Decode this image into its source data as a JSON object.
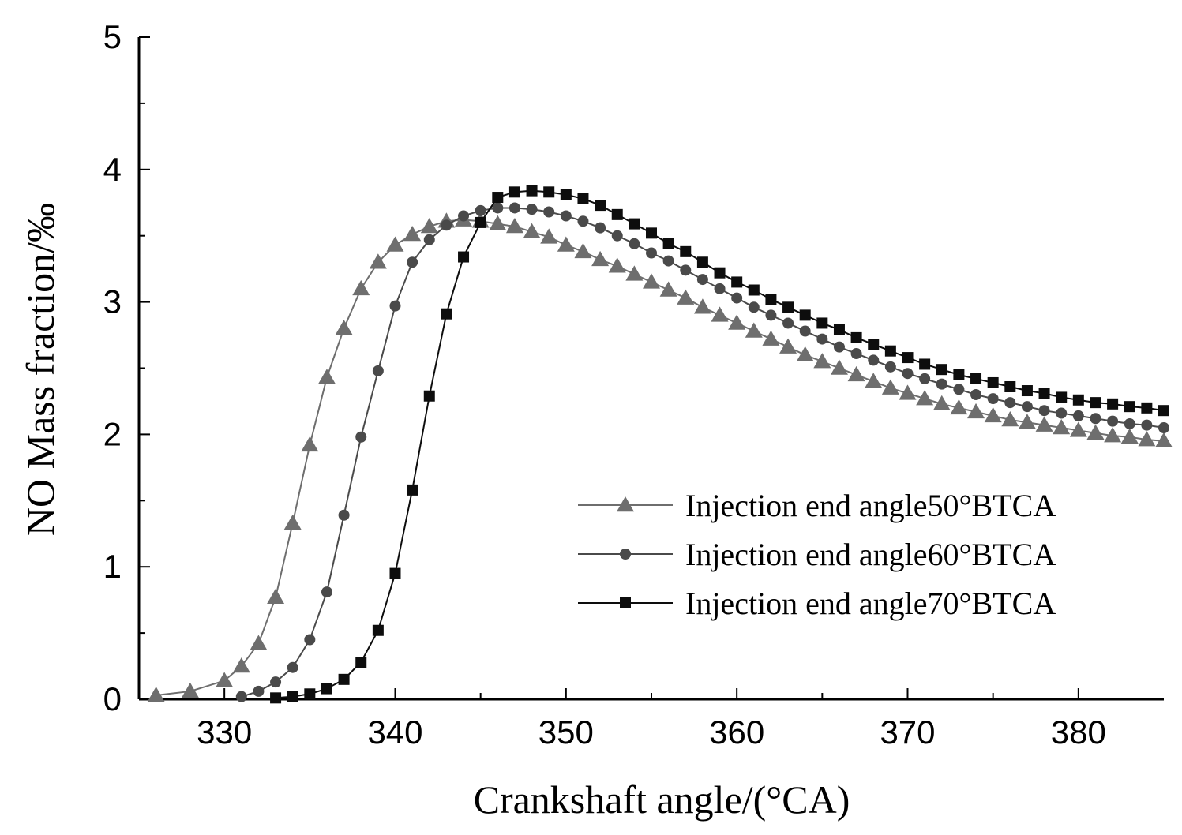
{
  "chart_data": {
    "type": "line",
    "xlabel": "Crankshaft angle/(°CA)",
    "ylabel": "NO Mass fraction/‰",
    "xlim": [
      325,
      385
    ],
    "ylim": [
      0,
      5
    ],
    "xticks": [
      330,
      340,
      350,
      360,
      370,
      380
    ],
    "yticks": [
      0,
      1,
      2,
      3,
      4,
      5
    ],
    "grid": false,
    "legend_position": "lower-right",
    "series": [
      {
        "name": "Injection end angle50°BTCA",
        "marker": "triangle",
        "color": "#6e6e6e",
        "x": [
          326,
          328,
          330,
          331,
          332,
          333,
          334,
          335,
          336,
          337,
          338,
          339,
          340,
          341,
          342,
          343,
          344,
          345,
          346,
          347,
          348,
          349,
          350,
          351,
          352,
          353,
          354,
          355,
          356,
          357,
          358,
          359,
          360,
          361,
          362,
          363,
          364,
          365,
          366,
          367,
          368,
          369,
          370,
          371,
          372,
          373,
          374,
          375,
          376,
          377,
          378,
          379,
          380,
          381,
          382,
          383,
          384,
          385
        ],
        "y": [
          0.03,
          0.06,
          0.14,
          0.25,
          0.42,
          0.77,
          1.33,
          1.92,
          2.43,
          2.8,
          3.1,
          3.3,
          3.43,
          3.51,
          3.57,
          3.61,
          3.62,
          3.61,
          3.59,
          3.57,
          3.53,
          3.49,
          3.43,
          3.38,
          3.32,
          3.27,
          3.21,
          3.15,
          3.09,
          3.03,
          2.96,
          2.9,
          2.84,
          2.78,
          2.72,
          2.66,
          2.6,
          2.55,
          2.5,
          2.45,
          2.4,
          2.35,
          2.31,
          2.27,
          2.23,
          2.2,
          2.17,
          2.14,
          2.11,
          2.09,
          2.07,
          2.05,
          2.03,
          2.01,
          1.99,
          1.98,
          1.96,
          1.95
        ]
      },
      {
        "name": "Injection end angle60°BTCA",
        "marker": "circle",
        "color": "#4a4a4a",
        "x": [
          331,
          332,
          333,
          334,
          335,
          336,
          337,
          338,
          339,
          340,
          341,
          342,
          343,
          344,
          345,
          346,
          347,
          348,
          349,
          350,
          351,
          352,
          353,
          354,
          355,
          356,
          357,
          358,
          359,
          360,
          361,
          362,
          363,
          364,
          365,
          366,
          367,
          368,
          369,
          370,
          371,
          372,
          373,
          374,
          375,
          376,
          377,
          378,
          379,
          380,
          381,
          382,
          383,
          384,
          385
        ],
        "y": [
          0.02,
          0.06,
          0.13,
          0.24,
          0.45,
          0.81,
          1.39,
          1.98,
          2.48,
          2.97,
          3.3,
          3.47,
          3.58,
          3.65,
          3.69,
          3.71,
          3.71,
          3.7,
          3.68,
          3.65,
          3.61,
          3.56,
          3.5,
          3.44,
          3.37,
          3.31,
          3.24,
          3.17,
          3.1,
          3.03,
          2.96,
          2.9,
          2.84,
          2.78,
          2.72,
          2.66,
          2.61,
          2.56,
          2.51,
          2.46,
          2.42,
          2.38,
          2.34,
          2.3,
          2.27,
          2.24,
          2.21,
          2.18,
          2.16,
          2.14,
          2.12,
          2.1,
          2.08,
          2.07,
          2.05
        ]
      },
      {
        "name": "Injection end angle70°BTCA",
        "marker": "square",
        "color": "#0d0d0d",
        "x": [
          333,
          334,
          335,
          336,
          337,
          338,
          339,
          340,
          341,
          342,
          343,
          344,
          345,
          346,
          347,
          348,
          349,
          350,
          351,
          352,
          353,
          354,
          355,
          356,
          357,
          358,
          359,
          360,
          361,
          362,
          363,
          364,
          365,
          366,
          367,
          368,
          369,
          370,
          371,
          372,
          373,
          374,
          375,
          376,
          377,
          378,
          379,
          380,
          381,
          382,
          383,
          384,
          385
        ],
        "y": [
          0.01,
          0.02,
          0.04,
          0.08,
          0.15,
          0.28,
          0.52,
          0.95,
          1.58,
          2.29,
          2.91,
          3.34,
          3.6,
          3.79,
          3.83,
          3.84,
          3.83,
          3.81,
          3.78,
          3.73,
          3.66,
          3.59,
          3.52,
          3.44,
          3.38,
          3.3,
          3.22,
          3.15,
          3.09,
          3.02,
          2.96,
          2.9,
          2.84,
          2.79,
          2.73,
          2.68,
          2.63,
          2.58,
          2.53,
          2.49,
          2.45,
          2.42,
          2.39,
          2.36,
          2.33,
          2.31,
          2.28,
          2.26,
          2.24,
          2.23,
          2.21,
          2.2,
          2.18
        ]
      }
    ]
  }
}
